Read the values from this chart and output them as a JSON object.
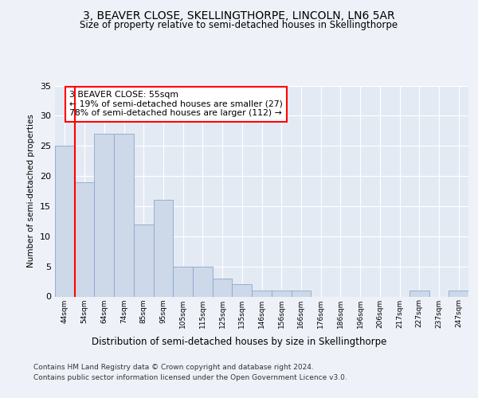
{
  "title": "3, BEAVER CLOSE, SKELLINGTHORPE, LINCOLN, LN6 5AR",
  "subtitle": "Size of property relative to semi-detached houses in Skellingthorpe",
  "xlabel": "Distribution of semi-detached houses by size in Skellingthorpe",
  "ylabel": "Number of semi-detached properties",
  "categories": [
    "44sqm",
    "54sqm",
    "64sqm",
    "74sqm",
    "85sqm",
    "95sqm",
    "105sqm",
    "115sqm",
    "125sqm",
    "135sqm",
    "146sqm",
    "156sqm",
    "166sqm",
    "176sqm",
    "186sqm",
    "196sqm",
    "206sqm",
    "217sqm",
    "227sqm",
    "237sqm",
    "247sqm"
  ],
  "values": [
    25,
    19,
    27,
    27,
    12,
    16,
    5,
    5,
    3,
    2,
    1,
    1,
    1,
    0,
    0,
    0,
    0,
    0,
    1,
    0,
    1
  ],
  "bar_color": "#cdd8e8",
  "bar_edge_color": "#8aa8cc",
  "red_line_index": 1,
  "annotation_title": "3 BEAVER CLOSE: 55sqm",
  "annotation_line1": "← 19% of semi-detached houses are smaller (27)",
  "annotation_line2": "78% of semi-detached houses are larger (112) →",
  "ylim": [
    0,
    35
  ],
  "yticks": [
    0,
    5,
    10,
    15,
    20,
    25,
    30,
    35
  ],
  "footer1": "Contains HM Land Registry data © Crown copyright and database right 2024.",
  "footer2": "Contains public sector information licensed under the Open Government Licence v3.0.",
  "bg_color": "#eef2f8",
  "plot_bg_color": "#e4eaf4"
}
